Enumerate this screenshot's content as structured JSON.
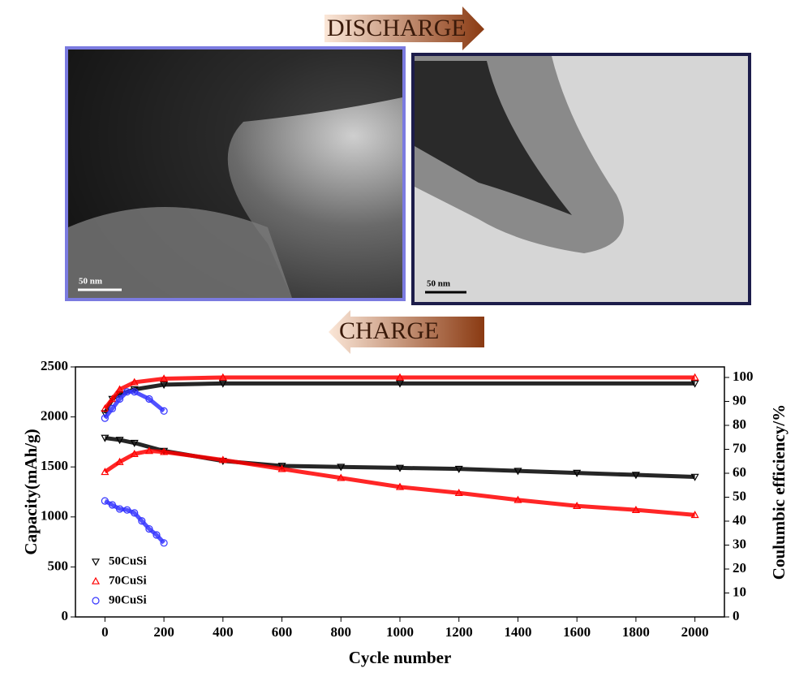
{
  "figure": {
    "discharge": "DISCHARGE",
    "charge": "CHARGE",
    "scale_left": "50 nm",
    "scale_right": "50 nm"
  },
  "chart_data": {
    "type": "line",
    "xlabel": "Cycle number",
    "ylabel": "Capacity(mAh/g)",
    "y2label": "Coulumbic efficiency/%",
    "xlim": [
      -100,
      2100
    ],
    "xticks": [
      0,
      200,
      400,
      600,
      800,
      1000,
      1200,
      1400,
      1600,
      1800,
      2000
    ],
    "ylim": [
      0,
      2500
    ],
    "yticks": [
      0,
      500,
      1000,
      1500,
      2000,
      2500
    ],
    "y2lim": [
      0,
      104.4
    ],
    "y2ticks": [
      0,
      10,
      20,
      30,
      40,
      50,
      60,
      70,
      80,
      90,
      100
    ],
    "legend": "lower left",
    "series": [
      {
        "name": "50CuSi",
        "color": "#000000",
        "marker": "triangle-down",
        "x": [
          0,
          50,
          100,
          200,
          400,
          600,
          800,
          1000,
          1200,
          1400,
          1600,
          1800,
          2000
        ],
        "values": [
          1790,
          1770,
          1740,
          1660,
          1560,
          1510,
          1500,
          1490,
          1480,
          1460,
          1440,
          1420,
          1400
        ]
      },
      {
        "name": "70CuSi",
        "color": "#ff0000",
        "marker": "triangle-up",
        "x": [
          0,
          50,
          100,
          150,
          200,
          400,
          600,
          800,
          1000,
          1200,
          1400,
          1600,
          1800,
          2000
        ],
        "values": [
          1450,
          1550,
          1630,
          1660,
          1650,
          1570,
          1480,
          1390,
          1300,
          1240,
          1170,
          1110,
          1070,
          1020
        ]
      },
      {
        "name": "90CuSi",
        "color": "#3333ff",
        "marker": "circle",
        "x": [
          0,
          25,
          50,
          75,
          100,
          125,
          150,
          175,
          200
        ],
        "values": [
          1160,
          1120,
          1080,
          1070,
          1040,
          960,
          880,
          820,
          740
        ]
      },
      {
        "color": "#000000",
        "marker": "triangle-down",
        "axis": "y2",
        "x": [
          0,
          25,
          50,
          100,
          200,
          400,
          1000,
          2000
        ],
        "values": [
          85,
          91,
          93,
          95,
          97,
          97.5,
          97.5,
          97.5
        ]
      },
      {
        "color": "#ff0000",
        "marker": "triangle-up",
        "axis": "y2",
        "x": [
          0,
          25,
          50,
          100,
          200,
          400,
          1000,
          2000
        ],
        "values": [
          87,
          91,
          95,
          98,
          99.5,
          100,
          100,
          100
        ]
      },
      {
        "color": "#3333ff",
        "marker": "circle",
        "axis": "y2",
        "x": [
          0,
          25,
          50,
          75,
          100,
          150,
          200
        ],
        "values": [
          83,
          87,
          91,
          94,
          94,
          91,
          86
        ]
      }
    ]
  }
}
